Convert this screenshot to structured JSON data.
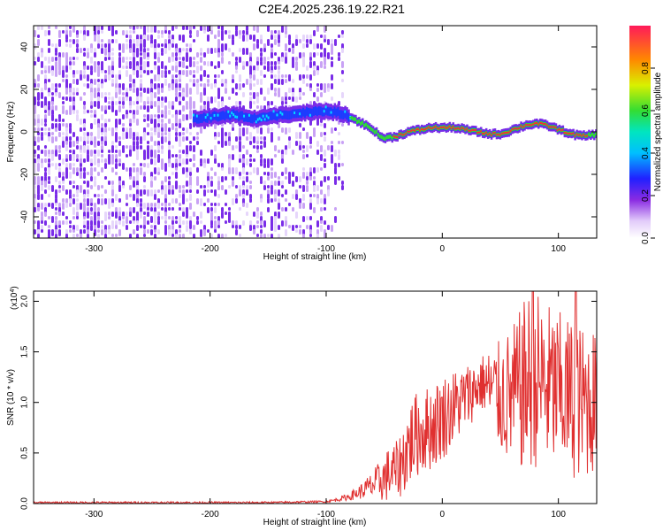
{
  "title": "C2E4.2025.236.19.22.R21",
  "colors": {
    "snr_line": "#e03030",
    "spec_main": "#7a2ce8",
    "spec_light": "#c9a2f5",
    "spec_pale": "#e6d6fb",
    "ridge_low": "#1b3cff",
    "ridge_mid": "#00e0ff",
    "ridge_hi": "#34d934",
    "ridge_top": "#ff2a2a"
  },
  "chart_data": [
    {
      "type": "heatmap",
      "name": "spectrogram",
      "xlabel": "Height of straight line (km)",
      "ylabel": "Frequency (Hz)",
      "xlim": [
        -352,
        133
      ],
      "ylim": [
        -50,
        50
      ],
      "xticks": [
        -300,
        -200,
        -100,
        0,
        100
      ],
      "xtick_labels": [
        "-300",
        "-200",
        "-100",
        "0",
        "100"
      ],
      "yticks": [
        -40,
        -20,
        0,
        20,
        40
      ],
      "ytick_labels": [
        "-40",
        "-20",
        "0",
        "20",
        "40"
      ],
      "noise_regions": [
        {
          "from": -352,
          "to": -215,
          "density": "dense",
          "level": 0.15
        },
        {
          "from": -215,
          "to": -100,
          "density": "medium",
          "level": 0.08
        },
        {
          "from": -100,
          "to": -85,
          "density": "sparse",
          "level": 0.04
        }
      ],
      "ridge_x": [
        -215,
        -200,
        -180,
        -160,
        -140,
        -120,
        -105,
        -90,
        -80,
        -70,
        -60,
        -55,
        -50,
        -40,
        -30,
        -20,
        -10,
        0,
        10,
        20,
        30,
        40,
        50,
        60,
        70,
        80,
        90,
        100,
        110,
        120,
        133
      ],
      "ridge_freq": [
        6,
        7,
        8,
        6,
        8,
        9,
        10,
        9,
        7,
        4,
        1,
        -2,
        -3,
        -2,
        0,
        1,
        2,
        2,
        2,
        1,
        0,
        -1,
        -1,
        1,
        3,
        4,
        3,
        1,
        -1,
        -2,
        -1
      ],
      "ridge_amplitude": [
        0.3,
        0.3,
        0.3,
        0.25,
        0.3,
        0.35,
        0.35,
        0.4,
        0.5,
        0.55,
        0.6,
        0.55,
        0.7,
        0.85,
        0.9,
        0.95,
        0.95,
        0.95,
        0.95,
        0.95,
        0.95,
        0.95,
        0.9,
        0.95,
        0.95,
        0.95,
        0.9,
        0.9,
        0.9,
        0.85,
        0.7
      ],
      "colorbar": {
        "label": "Normalized spectral amplitude",
        "range": [
          0,
          1
        ],
        "ticks": [
          0.0,
          0.2,
          0.4,
          0.6,
          0.8
        ],
        "tick_labels": [
          "0.0",
          "0.2",
          "0.4",
          "0.6",
          "0.8"
        ]
      }
    },
    {
      "type": "line",
      "name": "snr",
      "xlabel": "Height of straight line (km)",
      "ylabel": "SNR (10 * v/v)",
      "scale_label": "(x10",
      "scale_exponent": "4",
      "scale_suffix": ")",
      "xlim": [
        -352,
        133
      ],
      "ylim": [
        0,
        2.1
      ],
      "xticks": [
        -300,
        -200,
        -100,
        0,
        100
      ],
      "xtick_labels": [
        "-300",
        "-200",
        "-100",
        "0",
        "100"
      ],
      "yticks": [
        0.0,
        0.5,
        1.0,
        1.5,
        2.0
      ],
      "ytick_labels": [
        "0.0",
        "0.5",
        "1.0",
        "1.5",
        "2.0"
      ],
      "series": [
        {
          "name": "SNR",
          "x": [
            -352,
            -300,
            -250,
            -200,
            -150,
            -100,
            -90,
            -80,
            -70,
            -60,
            -50,
            -45,
            -40,
            -35,
            -30,
            -25,
            -20,
            -10,
            0,
            10,
            20,
            30,
            35,
            40,
            50,
            60,
            65,
            70,
            75,
            80,
            85,
            90,
            100,
            110,
            120,
            125,
            133
          ],
          "trend": [
            0.01,
            0.01,
            0.01,
            0.01,
            0.01,
            0.02,
            0.04,
            0.07,
            0.12,
            0.18,
            0.25,
            0.3,
            0.32,
            0.4,
            0.55,
            0.65,
            0.7,
            0.75,
            0.85,
            0.95,
            1.05,
            1.15,
            1.2,
            1.15,
            1.05,
            1.05,
            1.1,
            1.15,
            1.2,
            1.25,
            1.2,
            1.15,
            1.1,
            1.05,
            1.0,
            1.0,
            1.05
          ],
          "spread": [
            0.01,
            0.01,
            0.01,
            0.01,
            0.01,
            0.01,
            0.02,
            0.04,
            0.08,
            0.15,
            0.25,
            0.3,
            0.3,
            0.35,
            0.45,
            0.45,
            0.45,
            0.45,
            0.45,
            0.4,
            0.35,
            0.3,
            0.3,
            0.4,
            0.6,
            0.75,
            0.8,
            0.9,
            0.95,
            0.95,
            0.9,
            0.9,
            0.85,
            0.85,
            0.8,
            0.8,
            0.75
          ],
          "peak_x": [
            78,
            115
          ],
          "peak_values": [
            2.1,
            2.1
          ]
        }
      ]
    }
  ]
}
